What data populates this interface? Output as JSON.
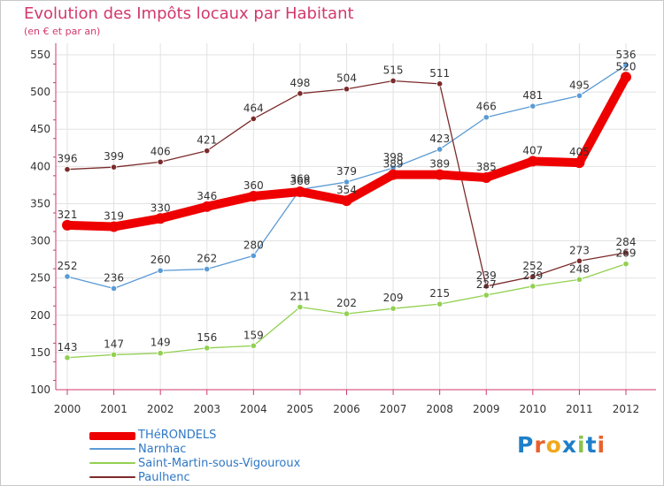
{
  "title": "Evolution des Impôts locaux par Habitant",
  "subtitle": "(en € et par an)",
  "logo_text": "Proxiti",
  "chart_data": {
    "type": "line",
    "title": "Evolution des Impôts locaux par Habitant",
    "subtitle": "(en € et par an)",
    "xlabel": "",
    "ylabel": "",
    "x": [
      "2000",
      "2001",
      "2002",
      "2003",
      "2004",
      "2005",
      "2006",
      "2007",
      "2008",
      "2009",
      "2010",
      "2011",
      "2012"
    ],
    "ylim": [
      100,
      550
    ],
    "yticks": [
      100,
      150,
      200,
      250,
      300,
      350,
      400,
      450,
      500,
      550
    ],
    "grid": true,
    "legend_position": "bottom-left",
    "series": [
      {
        "name": "THéRONDELS",
        "color": "#ee0000",
        "values": [
          321,
          319,
          330,
          346,
          360,
          366,
          354,
          389,
          389,
          385,
          407,
          405,
          520
        ]
      },
      {
        "name": "Narnhac",
        "color": "#5b9bd5",
        "values": [
          252,
          236,
          260,
          262,
          280,
          369,
          379,
          398,
          423,
          466,
          481,
          495,
          536
        ]
      },
      {
        "name": "Saint-Martin-sous-Vigouroux",
        "color": "#92d050",
        "values": [
          143,
          147,
          149,
          156,
          159,
          211,
          202,
          209,
          215,
          227,
          239,
          248,
          269
        ]
      },
      {
        "name": "Paulhenc",
        "color": "#7b2b2b",
        "values": [
          396,
          399,
          406,
          421,
          464,
          498,
          504,
          515,
          511,
          239,
          252,
          273,
          284
        ]
      }
    ]
  }
}
